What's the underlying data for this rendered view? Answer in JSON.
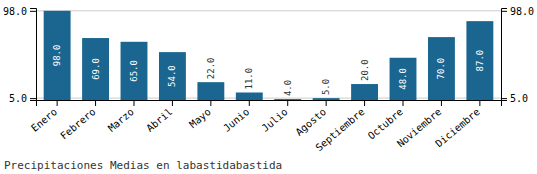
{
  "chart_data": {
    "type": "bar",
    "title": "Precipitaciones Medias en labastidabastida",
    "categories": [
      "Enero",
      "Febrero",
      "Marzo",
      "Abril",
      "Mayo",
      "Junio",
      "Julio",
      "Agosto",
      "Septiembre",
      "Octubre",
      "Noviembre",
      "Diciembre"
    ],
    "values": [
      98.0,
      69.0,
      65.0,
      54.0,
      22.0,
      11.0,
      4.0,
      5.0,
      20.0,
      48.0,
      70.0,
      87.0
    ],
    "value_labels": [
      "98.0",
      "69.0",
      "65.0",
      "54.0",
      "22.0",
      "11.0",
      "4.0",
      "5.0",
      "20.0",
      "48.0",
      "70.0",
      "87.0"
    ],
    "color": "#1a6690",
    "ylim": [
      3.0,
      101.0
    ],
    "yticks": [
      {
        "value": 5.0,
        "label": "5.0"
      },
      {
        "value": 98.0,
        "label": "98.0"
      }
    ],
    "y2lim": [
      3.0,
      101.0
    ],
    "y2ticks": [
      {
        "value": 5.0,
        "label": "5.0"
      },
      {
        "value": 98.0,
        "label": "98.0"
      }
    ],
    "grid": true,
    "data_labels": true
  }
}
